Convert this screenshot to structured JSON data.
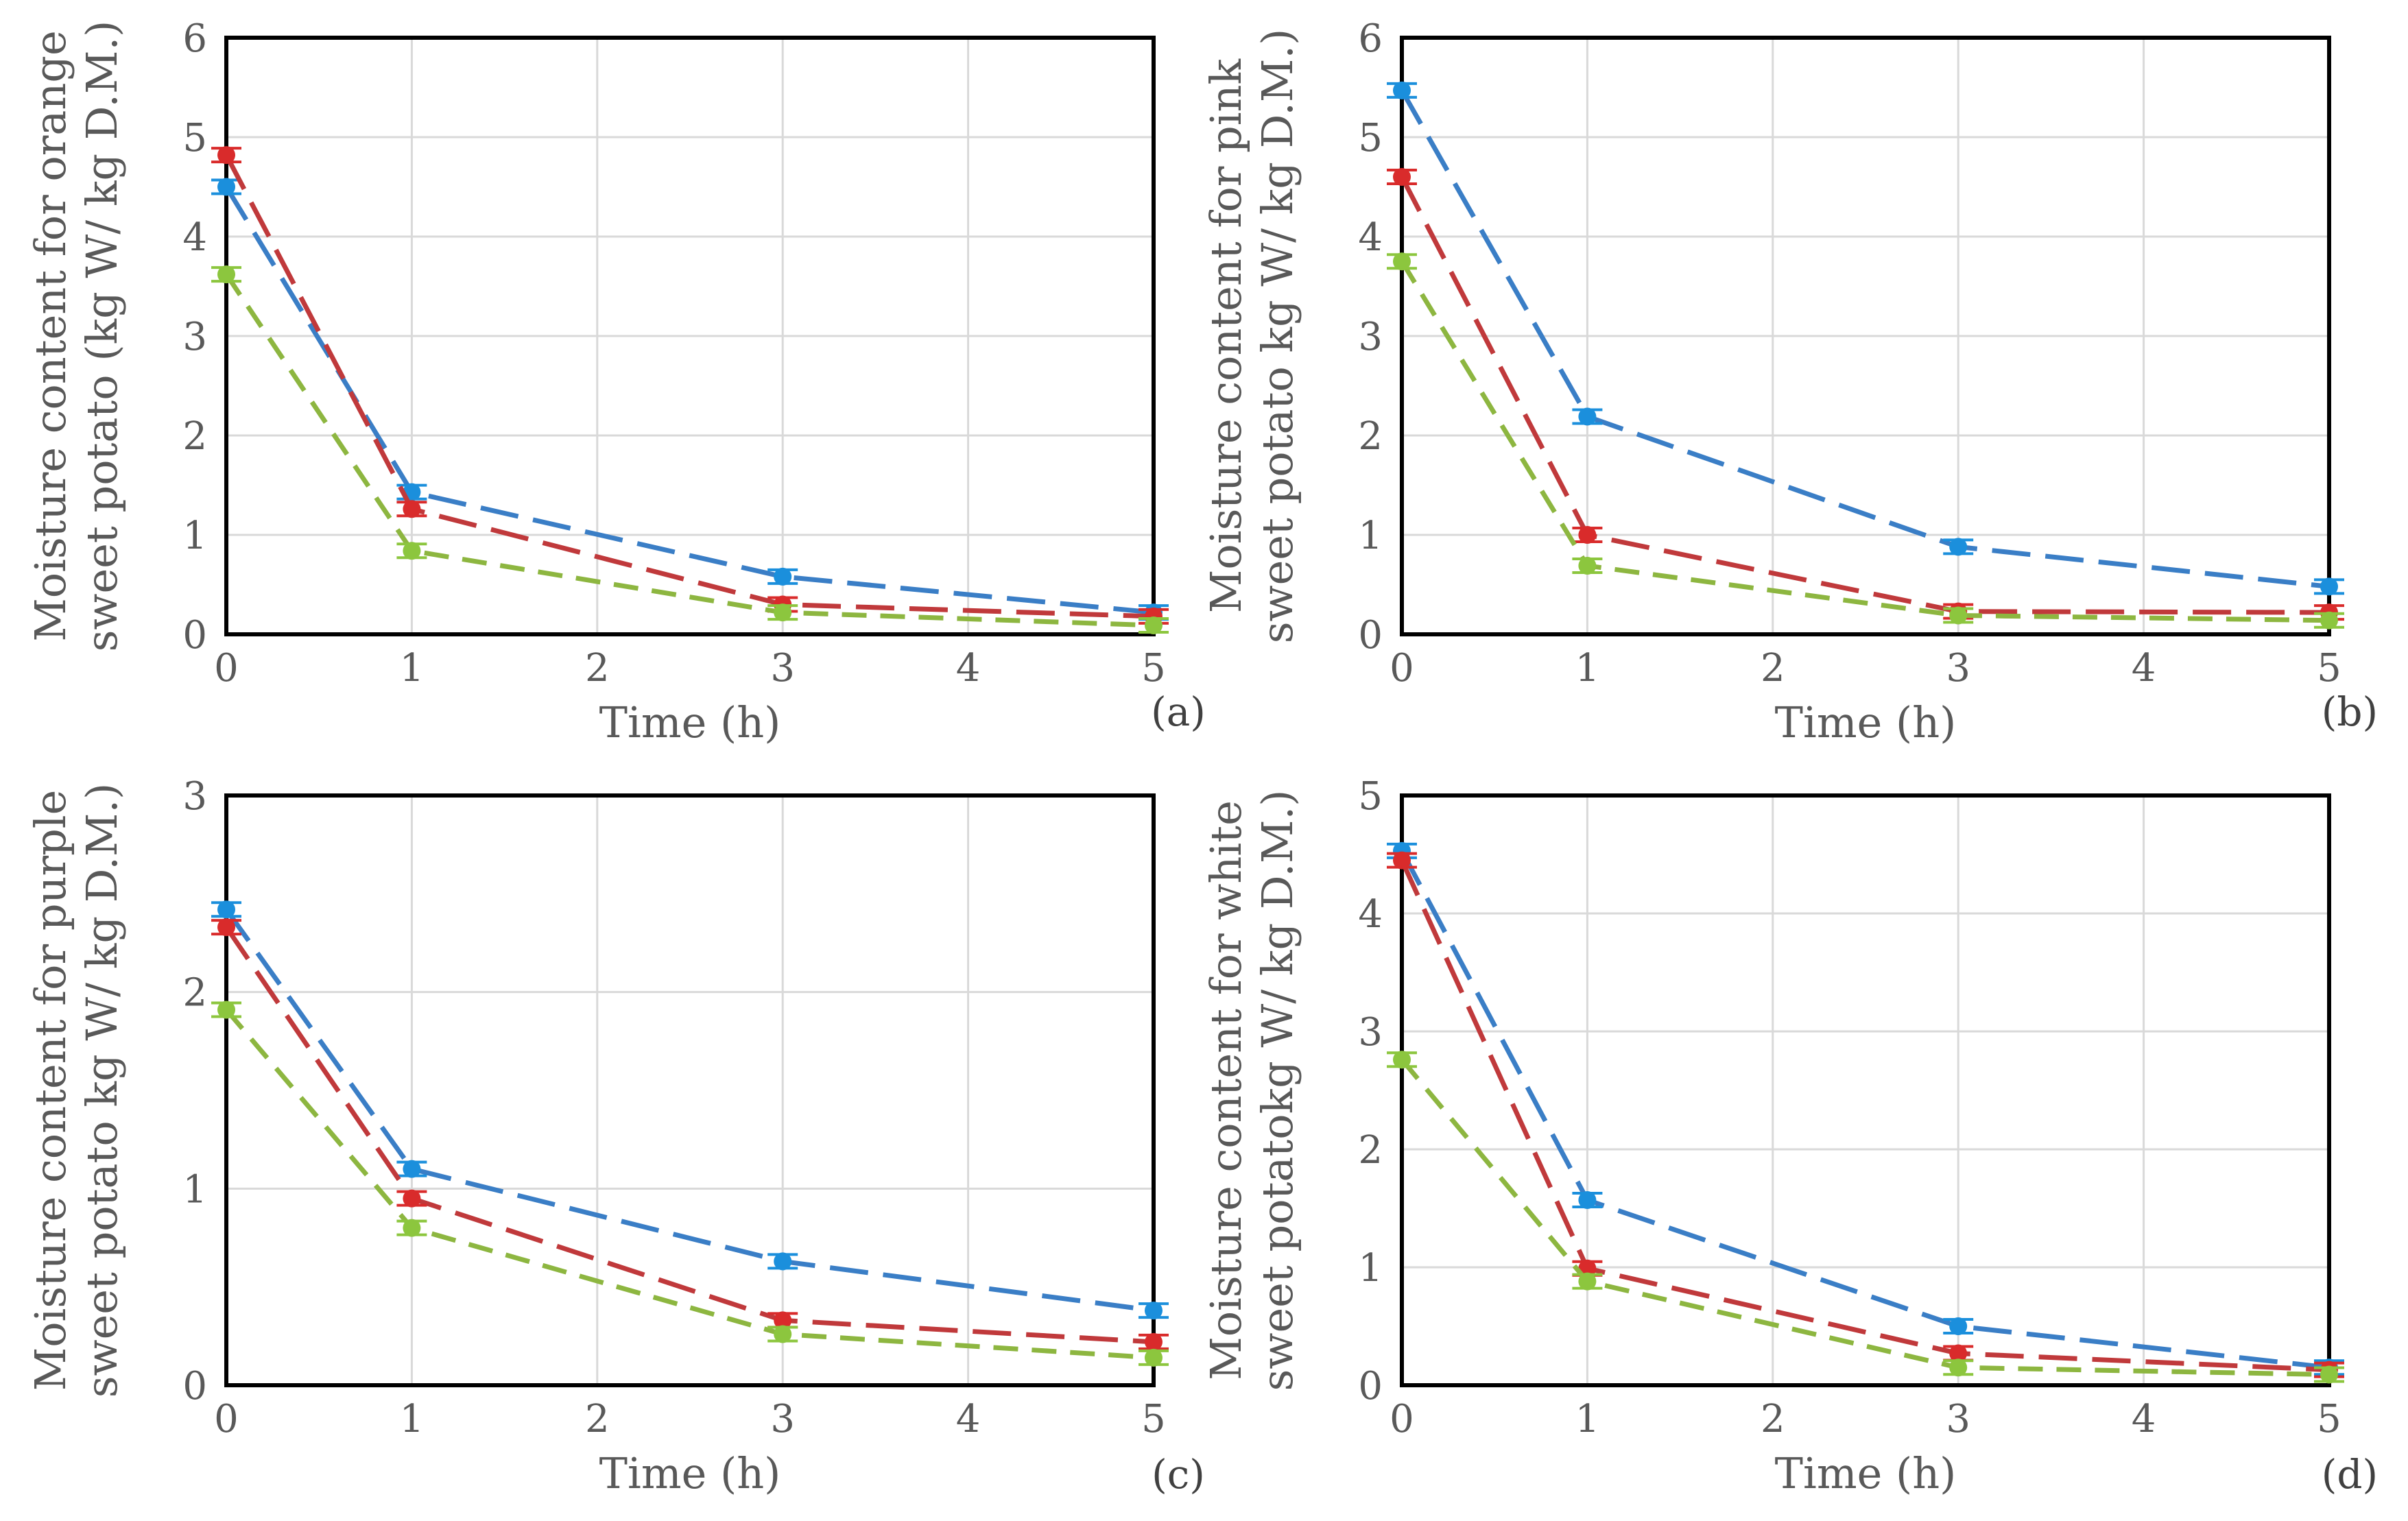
{
  "colors": {
    "series_1": "#3a7ec6",
    "series_2": "#c0393b",
    "series_3": "#8db640",
    "marker_1": "#1b8fdc",
    "marker_2": "#d92b2b",
    "marker_3": "#8cc63e"
  },
  "chart_data": [
    {
      "type": "line",
      "panel_label": "(a)",
      "xlabel": "Time (h)",
      "ylabel_line1": "Moisture content for orange",
      "ylabel_line2": "sweet potato (kg W/ kg D.M.)",
      "xlim": [
        0,
        5
      ],
      "ylim": [
        0,
        6
      ],
      "xticks": [
        "0",
        "1",
        "2",
        "3",
        "4",
        "5"
      ],
      "yticks": [
        "0",
        "1",
        "2",
        "3",
        "4",
        "5",
        "6"
      ],
      "grid": true,
      "x": [
        0,
        1,
        3,
        5
      ],
      "series": [
        {
          "values": [
            4.5,
            1.43,
            0.58,
            0.22
          ]
        },
        {
          "values": [
            4.82,
            1.26,
            0.3,
            0.18
          ]
        },
        {
          "values": [
            3.62,
            0.84,
            0.22,
            0.09
          ]
        }
      ]
    },
    {
      "type": "line",
      "panel_label": "(b)",
      "xlabel": "Time (h)",
      "ylabel_line1": "Moisture content for pink",
      "ylabel_line2": "sweet potato kg W/ kg D.M.)",
      "xlim": [
        0,
        5
      ],
      "ylim": [
        0,
        6
      ],
      "xticks": [
        "0",
        "1",
        "2",
        "3",
        "4",
        "5"
      ],
      "yticks": [
        "0",
        "1",
        "2",
        "3",
        "4",
        "5",
        "6"
      ],
      "grid": true,
      "x": [
        0,
        1,
        3,
        5
      ],
      "series": [
        {
          "values": [
            5.47,
            2.19,
            0.88,
            0.48
          ]
        },
        {
          "values": [
            4.6,
            1.0,
            0.23,
            0.22
          ]
        },
        {
          "values": [
            3.75,
            0.69,
            0.19,
            0.14
          ]
        }
      ]
    },
    {
      "type": "line",
      "panel_label": "(c)",
      "xlabel": "Time (h)",
      "ylabel_line1": "Moisture content for purple",
      "ylabel_line2": "sweet potato kg W/ kg D.M.)",
      "xlim": [
        0,
        5
      ],
      "ylim": [
        0,
        3
      ],
      "xticks": [
        "0",
        "1",
        "2",
        "3",
        "4",
        "5"
      ],
      "yticks": [
        "0",
        "1",
        "2",
        "3"
      ],
      "grid": true,
      "x": [
        0,
        1,
        3,
        5
      ],
      "series": [
        {
          "values": [
            2.42,
            1.1,
            0.63,
            0.38
          ]
        },
        {
          "values": [
            2.33,
            0.95,
            0.33,
            0.22
          ]
        },
        {
          "values": [
            1.91,
            0.8,
            0.26,
            0.14
          ]
        }
      ]
    },
    {
      "type": "line",
      "panel_label": "(d)",
      "xlabel": "Time (h)",
      "ylabel_line1": "Moisture content for white",
      "ylabel_line2": "sweet potatokg W/ kg D.M.)",
      "xlim": [
        0,
        5
      ],
      "ylim": [
        0,
        5
      ],
      "xticks": [
        "0",
        "1",
        "2",
        "3",
        "4",
        "5"
      ],
      "yticks": [
        "0",
        "1",
        "2",
        "3",
        "4",
        "5"
      ],
      "grid": true,
      "x": [
        0,
        1,
        3,
        5
      ],
      "series": [
        {
          "values": [
            4.53,
            1.57,
            0.5,
            0.15
          ]
        },
        {
          "values": [
            4.45,
            0.99,
            0.27,
            0.13
          ]
        },
        {
          "values": [
            2.76,
            0.88,
            0.15,
            0.09
          ]
        }
      ]
    }
  ]
}
